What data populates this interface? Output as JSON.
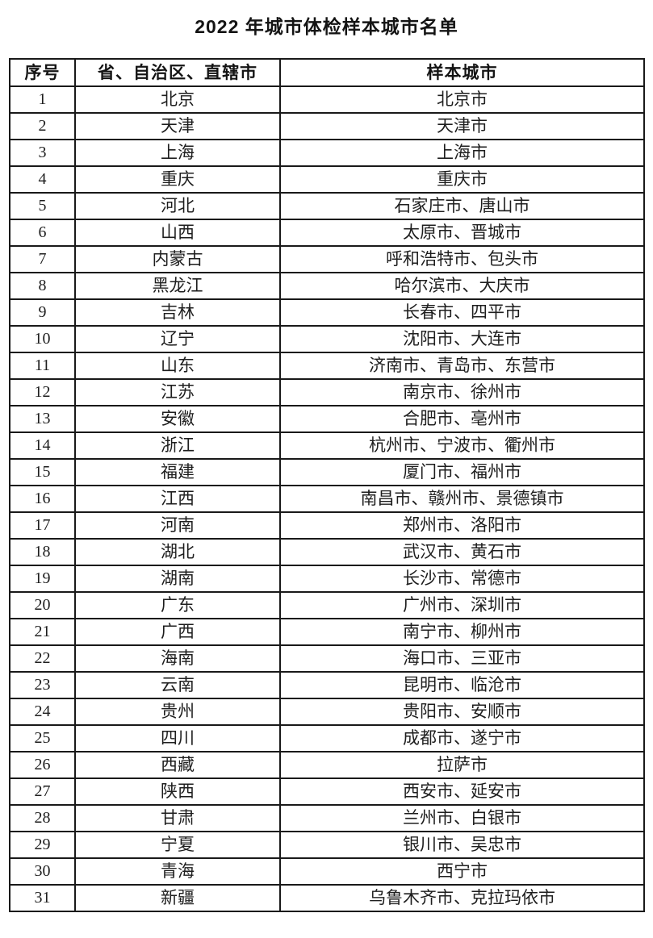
{
  "title": "2022 年城市体检样本城市名单",
  "table": {
    "headers": [
      "序号",
      "省、自治区、直辖市",
      "样本城市"
    ],
    "rows": [
      {
        "no": "1",
        "province": "北京",
        "cities": "北京市"
      },
      {
        "no": "2",
        "province": "天津",
        "cities": "天津市"
      },
      {
        "no": "3",
        "province": "上海",
        "cities": "上海市"
      },
      {
        "no": "4",
        "province": "重庆",
        "cities": "重庆市"
      },
      {
        "no": "5",
        "province": "河北",
        "cities": "石家庄市、唐山市"
      },
      {
        "no": "6",
        "province": "山西",
        "cities": "太原市、晋城市"
      },
      {
        "no": "7",
        "province": "内蒙古",
        "cities": "呼和浩特市、包头市"
      },
      {
        "no": "8",
        "province": "黑龙江",
        "cities": "哈尔滨市、大庆市"
      },
      {
        "no": "9",
        "province": "吉林",
        "cities": "长春市、四平市"
      },
      {
        "no": "10",
        "province": "辽宁",
        "cities": "沈阳市、大连市"
      },
      {
        "no": "11",
        "province": "山东",
        "cities": "济南市、青岛市、东营市"
      },
      {
        "no": "12",
        "province": "江苏",
        "cities": "南京市、徐州市"
      },
      {
        "no": "13",
        "province": "安徽",
        "cities": "合肥市、亳州市"
      },
      {
        "no": "14",
        "province": "浙江",
        "cities": "杭州市、宁波市、衢州市"
      },
      {
        "no": "15",
        "province": "福建",
        "cities": "厦门市、福州市"
      },
      {
        "no": "16",
        "province": "江西",
        "cities": "南昌市、赣州市、景德镇市"
      },
      {
        "no": "17",
        "province": "河南",
        "cities": "郑州市、洛阳市"
      },
      {
        "no": "18",
        "province": "湖北",
        "cities": "武汉市、黄石市"
      },
      {
        "no": "19",
        "province": "湖南",
        "cities": "长沙市、常德市"
      },
      {
        "no": "20",
        "province": "广东",
        "cities": "广州市、深圳市"
      },
      {
        "no": "21",
        "province": "广西",
        "cities": "南宁市、柳州市"
      },
      {
        "no": "22",
        "province": "海南",
        "cities": "海口市、三亚市"
      },
      {
        "no": "23",
        "province": "云南",
        "cities": "昆明市、临沧市"
      },
      {
        "no": "24",
        "province": "贵州",
        "cities": "贵阳市、安顺市"
      },
      {
        "no": "25",
        "province": "四川",
        "cities": "成都市、遂宁市"
      },
      {
        "no": "26",
        "province": "西藏",
        "cities": "拉萨市"
      },
      {
        "no": "27",
        "province": "陕西",
        "cities": "西安市、延安市"
      },
      {
        "no": "28",
        "province": "甘肃",
        "cities": "兰州市、白银市"
      },
      {
        "no": "29",
        "province": "宁夏",
        "cities": "银川市、吴忠市"
      },
      {
        "no": "30",
        "province": "青海",
        "cities": "西宁市"
      },
      {
        "no": "31",
        "province": "新疆",
        "cities": "乌鲁木齐市、克拉玛依市"
      }
    ]
  }
}
